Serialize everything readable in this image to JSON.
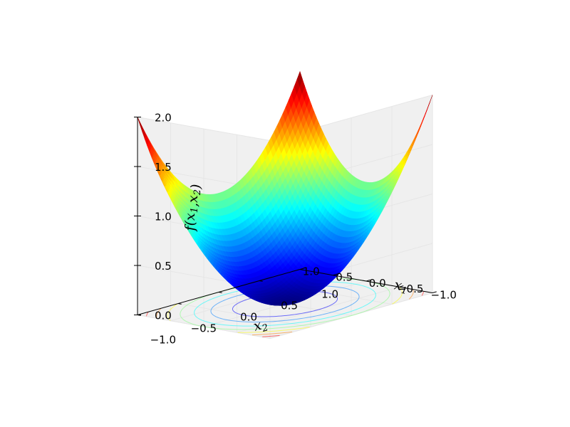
{
  "chart_data": {
    "type": "surface3d",
    "title": "",
    "function": "f(x1, x2) = x1^2 + x2^2",
    "surface_colormap": "jet",
    "contour_projection": "bottom (z = 0), jet colormap",
    "grid": true,
    "pane_color": "#f0f0f0",
    "xlabel": "x_1",
    "ylabel": "x_2",
    "zlabel": "f(x_1,x_2)",
    "xlim": [
      -1.0,
      1.0
    ],
    "ylim": [
      -1.0,
      1.0
    ],
    "zlim": [
      0.0,
      2.0
    ],
    "x_ticks": [
      "−1.0",
      "−0.5",
      "0.0",
      "0.5",
      "1.0"
    ],
    "y_ticks": [
      "−1.0",
      "−0.5",
      "0.0",
      "0.5",
      "1.0"
    ],
    "z_ticks": [
      "0.0",
      "0.5",
      "1.0",
      "1.5",
      "2.0"
    ],
    "x_tick_values": [
      -1.0,
      -0.5,
      0.0,
      0.5,
      1.0
    ],
    "y_tick_values": [
      -1.0,
      -0.5,
      0.0,
      0.5,
      1.0
    ],
    "z_tick_values": [
      0.0,
      0.5,
      1.0,
      1.5,
      2.0
    ],
    "contour_levels": [
      0.25,
      0.5,
      0.75,
      1.0,
      1.25,
      1.5,
      1.75
    ],
    "colors": {
      "jet_low": "#00007f",
      "jet_mid": "#7fff7f",
      "jet_high": "#7f0000",
      "grid": "#e6e6e6",
      "axis_line": "#000000"
    }
  }
}
